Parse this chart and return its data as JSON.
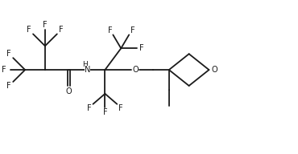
{
  "bg_color": "#ffffff",
  "line_color": "#1a1a1a",
  "line_width": 1.3,
  "font_size": 7.0,
  "fig_width": 3.7,
  "fig_height": 1.92,
  "dpi": 100,
  "xlim": [
    0,
    37
  ],
  "ylim": [
    0,
    19.2
  ]
}
